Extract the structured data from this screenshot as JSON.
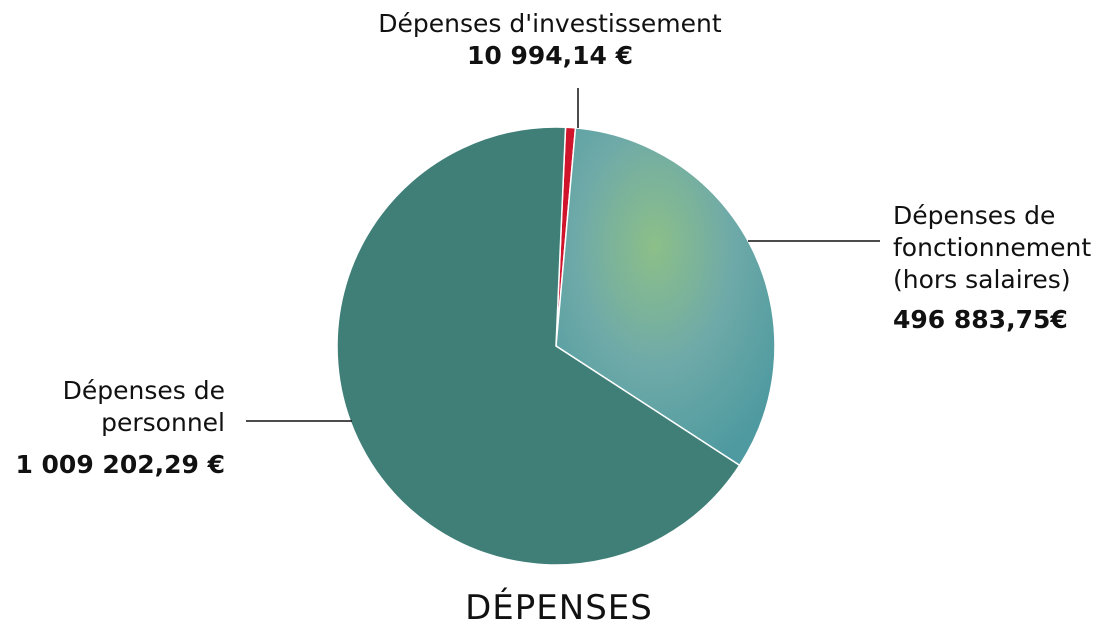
{
  "chart_data": {
    "type": "pie",
    "title": "DÉPENSES",
    "categories": [
      "Dépenses d'investissement",
      "Dépenses de fonctionnement (hors salaires)",
      "Dépenses de personnel"
    ],
    "values": [
      10994.14,
      496883.75,
      1009202.29
    ],
    "value_labels": [
      "10 994,14 €",
      "496 883,75€",
      "1 009 202,29 €"
    ],
    "colors": [
      "#d0142c",
      "#6fa9a2",
      "#3f7f78"
    ]
  }
}
